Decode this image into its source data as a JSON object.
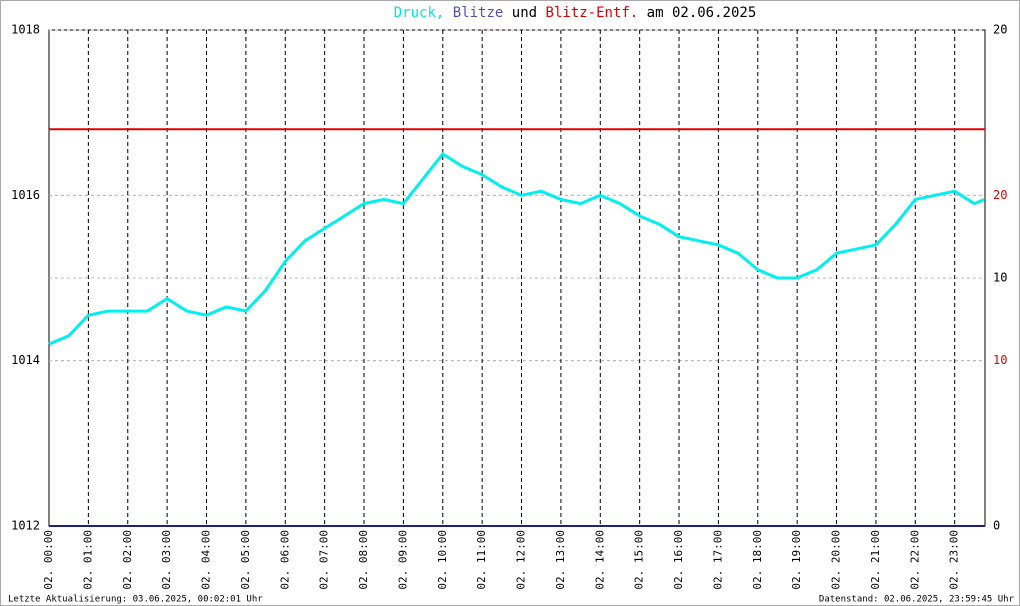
{
  "chart_data": {
    "type": "line",
    "title_parts": [
      {
        "text": "Druck,",
        "color": "#00e5e5"
      },
      {
        "text": "Blitze",
        "color": "#5050c0"
      },
      {
        "text": "und",
        "color": "#000000"
      },
      {
        "text": "Blitz-Entf.",
        "color": "#e00000"
      },
      {
        "text": "am 02.06.2025",
        "color": "#000000"
      }
    ],
    "footer_left": "Letzte Aktualisierung: 03.06.2025, 00:02:01 Uhr",
    "footer_right": "Datenstand: 02.06.2025, 23:59:45 Uhr",
    "xlim": [
      0,
      23.77
    ],
    "xticks": [
      {
        "value": 0,
        "label": "02. 00:00"
      },
      {
        "value": 1,
        "label": "02. 01:00"
      },
      {
        "value": 2,
        "label": "02. 02:00"
      },
      {
        "value": 3,
        "label": "02. 03:00"
      },
      {
        "value": 4,
        "label": "02. 04:00"
      },
      {
        "value": 5,
        "label": "02. 05:00"
      },
      {
        "value": 6,
        "label": "02. 06:00"
      },
      {
        "value": 7,
        "label": "02. 07:00"
      },
      {
        "value": 8,
        "label": "02. 08:00"
      },
      {
        "value": 9,
        "label": "02. 09:00"
      },
      {
        "value": 10,
        "label": "02. 10:00"
      },
      {
        "value": 11,
        "label": "02. 11:00"
      },
      {
        "value": 12,
        "label": "02. 12:00"
      },
      {
        "value": 13,
        "label": "02. 13:00"
      },
      {
        "value": 14,
        "label": "02. 14:00"
      },
      {
        "value": 15,
        "label": "02. 15:00"
      },
      {
        "value": 16,
        "label": "02. 16:00"
      },
      {
        "value": 17,
        "label": "02. 17:00"
      },
      {
        "value": 18,
        "label": "02. 18:00"
      },
      {
        "value": 19,
        "label": "02. 19:00"
      },
      {
        "value": 20,
        "label": "02. 20:00"
      },
      {
        "value": 21,
        "label": "02. 21:00"
      },
      {
        "value": 22,
        "label": "02. 22:00"
      },
      {
        "value": 23,
        "label": "02. 23:00"
      }
    ],
    "ylim": [
      1012,
      1018
    ],
    "yticks": [
      1012,
      1014,
      1016,
      1018
    ],
    "y2lim": [
      0,
      20
    ],
    "y2ticks": [
      0,
      10,
      20
    ],
    "y3lim": [
      0,
      30
    ],
    "y3ticks": [
      10,
      20
    ],
    "y3color": "#e00000",
    "grid": true,
    "series": [
      {
        "name": "Druck",
        "color": "#00f0f0",
        "x": [
          0,
          0.5,
          1,
          1.5,
          2,
          2.5,
          3,
          3.5,
          4,
          4.5,
          5,
          5.5,
          6,
          6.5,
          7,
          7.5,
          8,
          8.5,
          9,
          9.5,
          10,
          10.5,
          11,
          11.5,
          12,
          12.5,
          13,
          13.5,
          14,
          14.5,
          15,
          15.5,
          16,
          16.5,
          17,
          17.5,
          18,
          18.5,
          19,
          19.5,
          20,
          20.5,
          21,
          21.5,
          22,
          22.5,
          23,
          23.5,
          23.75
        ],
        "values": [
          1014.2,
          1014.3,
          1014.55,
          1014.6,
          1014.6,
          1014.6,
          1014.75,
          1014.6,
          1014.55,
          1014.65,
          1014.6,
          1014.85,
          1015.2,
          1015.45,
          1015.6,
          1015.75,
          1015.9,
          1015.95,
          1015.9,
          1016.2,
          1016.5,
          1016.35,
          1016.25,
          1016.1,
          1016.0,
          1016.05,
          1015.95,
          1015.9,
          1016.0,
          1015.9,
          1015.75,
          1015.65,
          1015.5,
          1015.45,
          1015.4,
          1015.3,
          1015.1,
          1015.0,
          1015.0,
          1015.1,
          1015.3,
          1015.35,
          1015.4,
          1015.65,
          1015.95,
          1016.0,
          1016.05,
          1015.9,
          1015.95
        ]
      },
      {
        "name": "Blitze",
        "color": "#202080",
        "axis": "y2",
        "x": [
          0,
          23.77
        ],
        "values": [
          0,
          0
        ]
      },
      {
        "name": "Blitz-Entf.",
        "color": "#e00000",
        "axis": "y3",
        "x": [
          0,
          23.77
        ],
        "values": [
          24,
          24
        ]
      }
    ]
  }
}
